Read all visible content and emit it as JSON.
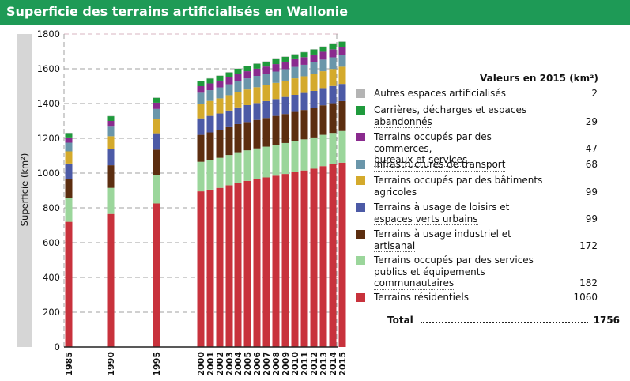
{
  "title": "Superficie des terrains artificialisés en Wallonie",
  "legend_title": "Valeurs en 2015 (km²)",
  "total_label": "Total",
  "total_value": "1756",
  "chart_data": {
    "type": "bar",
    "stacked": true,
    "title": "Superficie des terrains artificialisés en Wallonie",
    "xlabel": "",
    "ylabel": "Superficie (km²)",
    "ylim": [
      0,
      1800
    ],
    "yticks": [
      0,
      200,
      400,
      600,
      800,
      1000,
      1200,
      1400,
      1600,
      1800
    ],
    "categories": [
      "1985",
      "1990",
      "1995",
      "2000",
      "2001",
      "2002",
      "2003",
      "2004",
      "2005",
      "2006",
      "2007",
      "2008",
      "2009",
      "2010",
      "2011",
      "2012",
      "2013",
      "2014",
      "2015"
    ],
    "series": [
      {
        "name": "Terrains résidentiels",
        "legend": [
          "Terrains résidentiels"
        ],
        "value_2015": "1060",
        "color": "#c8323c",
        "values": [
          720,
          765,
          825,
          895,
          905,
          915,
          930,
          945,
          955,
          965,
          975,
          985,
          995,
          1005,
          1015,
          1025,
          1040,
          1050,
          1060
        ]
      },
      {
        "name": "Terrains occupés par des services publics et équipements communautaires",
        "legend": [
          "Terrains occupés par des services",
          "publics et équipements",
          "communautaires"
        ],
        "value_2015": "182",
        "color": "#9bd69b",
        "values": [
          135,
          150,
          165,
          170,
          172,
          173,
          174,
          175,
          176,
          177,
          177,
          178,
          178,
          179,
          179,
          180,
          180,
          181,
          182
        ]
      },
      {
        "name": "Terrains à usage industriel et artisanal",
        "legend": [
          "Terrains à usage industriel et",
          "artisanal"
        ],
        "value_2015": "172",
        "color": "#5c2e10",
        "values": [
          110,
          130,
          145,
          155,
          157,
          159,
          160,
          162,
          163,
          164,
          165,
          166,
          167,
          168,
          169,
          170,
          170,
          171,
          172
        ]
      },
      {
        "name": "Terrains à usage de loisirs et espaces verts urbains",
        "legend": [
          "Terrains à usage de loisirs et",
          "espaces verts urbains"
        ],
        "value_2015": "99",
        "color": "#4c5aa6",
        "values": [
          90,
          92,
          94,
          95,
          95,
          96,
          96,
          96,
          97,
          97,
          97,
          97,
          98,
          98,
          98,
          98,
          99,
          99,
          99
        ]
      },
      {
        "name": "Terrains occupés par des bâtiments agricoles",
        "legend": [
          "Terrains occupés par des bâtiments",
          "agricoles"
        ],
        "value_2015": "99",
        "color": "#d4aa2c",
        "values": [
          70,
          75,
          80,
          85,
          86,
          87,
          88,
          89,
          90,
          91,
          92,
          93,
          94,
          95,
          96,
          97,
          97,
          98,
          99
        ]
      },
      {
        "name": "Infrastructures de transport",
        "legend": [
          "Infrastructures de transport"
        ],
        "value_2015": "68",
        "color": "#6a96aa",
        "values": [
          50,
          55,
          60,
          62,
          62,
          63,
          63,
          64,
          64,
          65,
          65,
          65,
          66,
          66,
          66,
          67,
          67,
          67,
          68
        ]
      },
      {
        "name": "Terrains occupés par des commerces, bureaux et services",
        "legend": [
          "Terrains occupés par des commerces,",
          "bureaux et services"
        ],
        "value_2015": "47",
        "color": "#8a2a8e",
        "values": [
          30,
          33,
          36,
          38,
          39,
          39,
          40,
          41,
          41,
          42,
          42,
          43,
          43,
          44,
          44,
          45,
          45,
          46,
          47
        ]
      },
      {
        "name": "Carrières, décharges et espaces abandonnés",
        "legend": [
          "Carrières, décharges et espaces",
          "abandonnés"
        ],
        "value_2015": "29",
        "color": "#1f9a3c",
        "values": [
          25,
          27,
          28,
          28,
          28,
          28,
          28,
          28,
          28,
          28,
          28,
          28,
          28,
          28,
          28,
          29,
          29,
          29,
          29
        ]
      },
      {
        "name": "Autres espaces artificialisés",
        "legend": [
          "Autres espaces artificialisés"
        ],
        "value_2015": "2",
        "color": "#b4b4b4",
        "values": [
          2,
          2,
          2,
          2,
          2,
          2,
          2,
          2,
          2,
          2,
          2,
          2,
          2,
          2,
          2,
          2,
          2,
          2,
          2
        ]
      }
    ]
  }
}
